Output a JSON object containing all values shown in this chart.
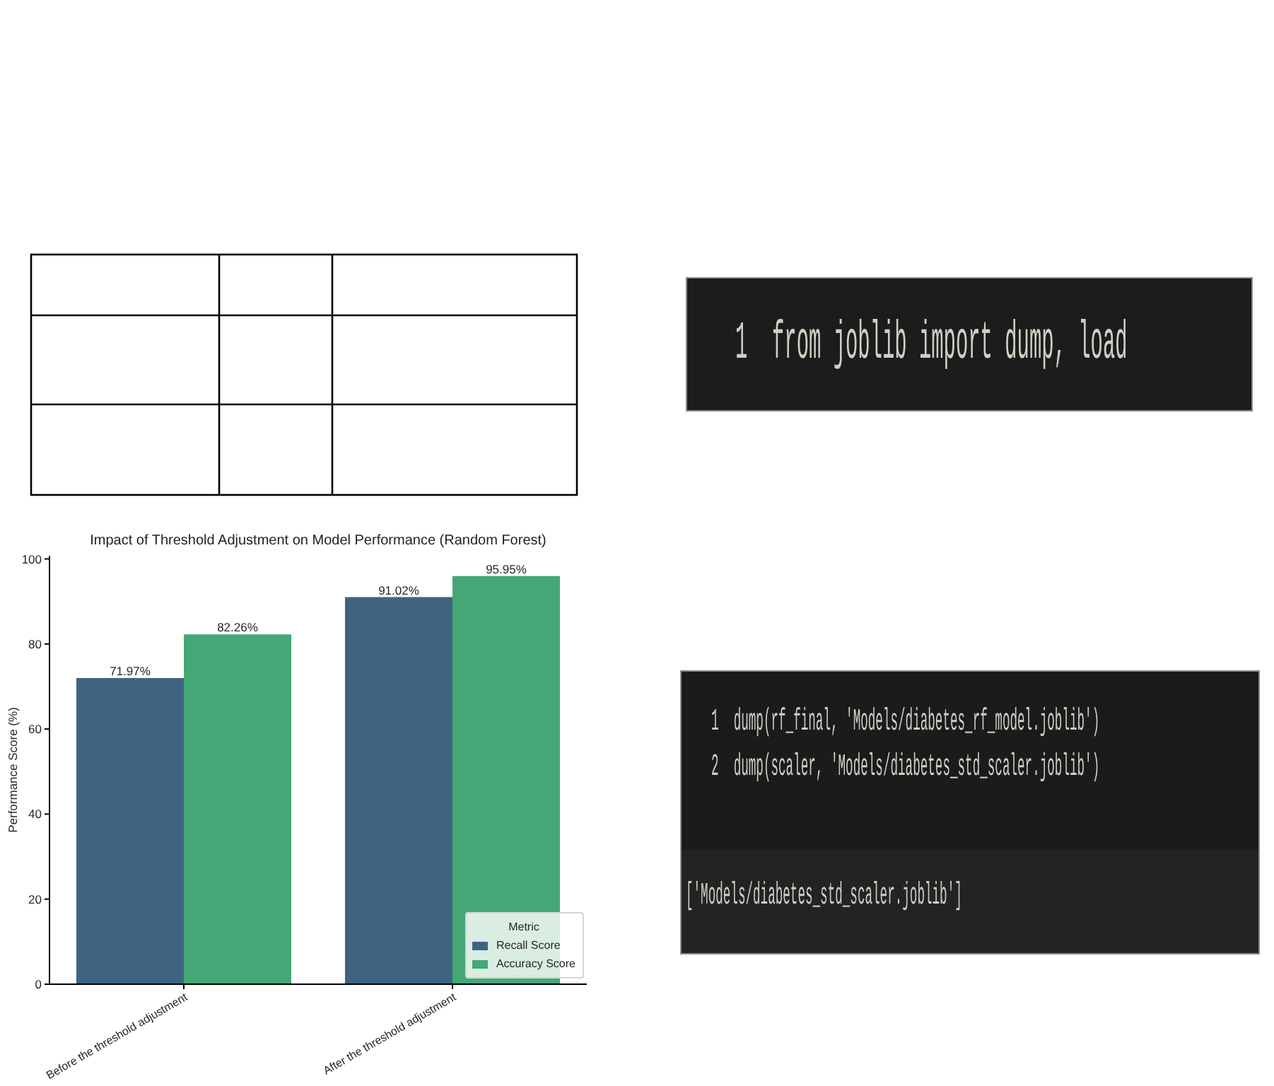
{
  "chart_data": [
    {
      "type": "bar",
      "title": "Impact of Threshold Adjustment on Model Performance (Random Forest)",
      "ylabel": "Performance Score (%)",
      "legend_title": "Metric",
      "categories": [
        "Before the threshold adjustment",
        "After the threshold adjustment"
      ],
      "series": [
        {
          "name": "Recall Score",
          "color": "#3e6482",
          "values": [
            71.97,
            91.02
          ],
          "value_labels": [
            "71.97%",
            "91.02%"
          ]
        },
        {
          "name": "Accuracy Score",
          "color": "#45a776",
          "values": [
            82.26,
            95.95
          ],
          "value_labels": [
            "82.26%",
            "95.95%"
          ]
        }
      ],
      "ylim": [
        0,
        100.75
      ],
      "yticks": [
        0,
        20,
        40,
        60,
        80,
        100
      ],
      "legend": "bottom right"
    },
    {
      "type": "other",
      "annotations": [
        "1  from joblib import dump, load"
      ]
    },
    {
      "type": "other",
      "annotations": [
        "1  dump(rf_final, 'Models/diabetes_rf_model.joblib')",
        "2  dump(scaler, 'Models/diabetes_std_scaler.joblib')",
        "['Models/diabetes_std_scaler.joblib']"
      ]
    }
  ]
}
